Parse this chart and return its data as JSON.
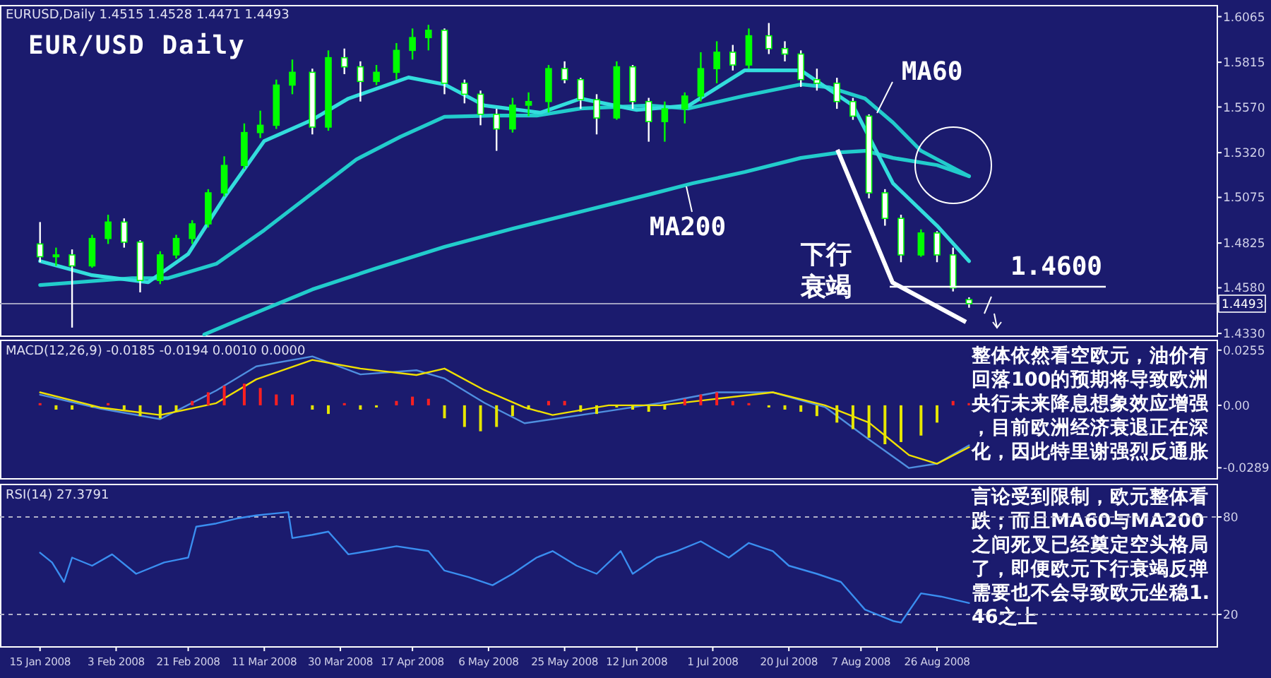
{
  "chart_data": [
    {
      "type": "candlestick",
      "title": "EUR/USD Daily",
      "subtitle": "EURUSD,Daily  1.4515 1.4528 1.4471 1.4493",
      "tick_labels": "y",
      "xlim": [
        "2008-01-05",
        "2008-11-04"
      ],
      "ylim": [
        1.4315,
        1.6125
      ],
      "yticks": [
        1.6065,
        1.5815,
        {
          "value": 1.557,
          "label": "1.5570"
        },
        {
          "value": 1.532,
          "label": "1.5320"
        },
        1.5075,
        1.4825,
        {
          "value": 1.458,
          "label": "1.4580"
        },
        {
          "value": 1.433,
          "label": "1.4330"
        }
      ],
      "x": [
        "2008-01-15",
        "2008-01-19",
        "2008-01-23",
        "2008-01-28",
        "2008-02-01",
        "2008-02-05",
        "2008-02-09",
        "2008-02-14",
        "2008-02-18",
        "2008-02-22",
        "2008-02-26",
        "2008-03-01",
        "2008-03-06",
        "2008-03-10",
        "2008-03-14",
        "2008-03-18",
        "2008-03-23",
        "2008-03-27",
        "2008-03-31",
        "2008-04-04",
        "2008-04-08",
        "2008-04-13",
        "2008-04-17",
        "2008-04-21",
        "2008-04-25",
        "2008-04-30",
        "2008-05-04",
        "2008-05-08",
        "2008-05-12",
        "2008-05-16",
        "2008-05-21",
        "2008-05-25",
        "2008-05-29",
        "2008-06-02",
        "2008-06-07",
        "2008-06-11",
        "2008-06-15",
        "2008-06-19",
        "2008-06-24",
        "2008-06-28",
        "2008-07-02",
        "2008-07-06",
        "2008-07-10",
        "2008-07-15",
        "2008-07-19",
        "2008-07-23",
        "2008-07-27",
        "2008-08-01",
        "2008-08-05",
        "2008-08-09",
        "2008-08-13",
        "2008-08-17",
        "2008-08-22",
        "2008-08-26",
        "2008-08-30",
        "2008-09-03"
      ],
      "ohlc": [
        [
          1.482,
          1.494,
          1.472,
          1.475
        ],
        [
          1.475,
          1.48,
          1.47,
          1.476
        ],
        [
          1.476,
          1.479,
          1.4362,
          1.47
        ],
        [
          1.47,
          1.487,
          1.469,
          1.485
        ],
        [
          1.485,
          1.498,
          1.482,
          1.494
        ],
        [
          1.494,
          1.496,
          1.48,
          1.483
        ],
        [
          1.483,
          1.484,
          1.4555,
          1.462
        ],
        [
          1.462,
          1.478,
          1.46,
          1.476
        ],
        [
          1.476,
          1.487,
          1.474,
          1.485
        ],
        [
          1.485,
          1.495,
          1.482,
          1.493
        ],
        [
          1.493,
          1.512,
          1.491,
          1.51
        ],
        [
          1.51,
          1.53,
          1.508,
          1.525
        ],
        [
          1.525,
          1.548,
          1.523,
          1.543
        ],
        [
          1.543,
          1.555,
          1.54,
          1.547
        ],
        [
          1.547,
          1.572,
          1.545,
          1.569
        ],
        [
          1.569,
          1.583,
          1.564,
          1.576
        ],
        [
          1.576,
          1.578,
          1.542,
          1.546
        ],
        [
          1.546,
          1.588,
          1.544,
          1.584
        ],
        [
          1.584,
          1.589,
          1.575,
          1.579
        ],
        [
          1.579,
          1.582,
          1.56,
          1.571
        ],
        [
          1.571,
          1.58,
          1.569,
          1.576
        ],
        [
          1.576,
          1.592,
          1.572,
          1.588
        ],
        [
          1.588,
          1.6,
          1.583,
          1.595
        ],
        [
          1.595,
          1.602,
          1.588,
          1.599
        ],
        [
          1.599,
          1.6,
          1.564,
          1.57
        ],
        [
          1.57,
          1.572,
          1.559,
          1.564
        ],
        [
          1.564,
          1.566,
          1.547,
          1.553
        ],
        [
          1.553,
          1.556,
          1.533,
          1.545
        ],
        [
          1.545,
          1.562,
          1.543,
          1.558
        ],
        [
          1.558,
          1.565,
          1.552,
          1.56
        ],
        [
          1.56,
          1.58,
          1.554,
          1.578
        ],
        [
          1.578,
          1.582,
          1.57,
          1.572
        ],
        [
          1.572,
          1.573,
          1.556,
          1.561
        ],
        [
          1.561,
          1.564,
          1.542,
          1.551
        ],
        [
          1.551,
          1.582,
          1.55,
          1.579
        ],
        [
          1.579,
          1.58,
          1.556,
          1.56
        ],
        [
          1.56,
          1.562,
          1.538,
          1.549
        ],
        [
          1.549,
          1.56,
          1.538,
          1.556
        ],
        [
          1.556,
          1.565,
          1.548,
          1.563
        ],
        [
          1.563,
          1.587,
          1.56,
          1.578
        ],
        [
          1.578,
          1.593,
          1.57,
          1.587
        ],
        [
          1.587,
          1.591,
          1.577,
          1.58
        ],
        [
          1.58,
          1.6,
          1.578,
          1.596
        ],
        [
          1.596,
          1.603,
          1.586,
          1.589
        ],
        [
          1.589,
          1.593,
          1.582,
          1.586
        ],
        [
          1.586,
          1.588,
          1.568,
          1.572
        ],
        [
          1.572,
          1.578,
          1.566,
          1.57
        ],
        [
          1.57,
          1.573,
          1.556,
          1.56
        ],
        [
          1.56,
          1.562,
          1.55,
          1.552
        ],
        [
          1.552,
          1.553,
          1.507,
          1.51
        ],
        [
          1.51,
          1.512,
          1.492,
          1.496
        ],
        [
          1.496,
          1.498,
          1.472,
          1.476
        ],
        [
          1.476,
          1.49,
          1.475,
          1.488
        ],
        [
          1.488,
          1.489,
          1.472,
          1.476
        ],
        [
          1.476,
          1.48,
          1.456,
          1.458
        ],
        [
          1.4515,
          1.4528,
          1.4471,
          1.4493
        ]
      ],
      "colors": [
        "#ffffff",
        "#00ff00",
        "#ffffff",
        "#00ff00",
        "#00ff00",
        "#ffffff",
        "#ffffff",
        "#00ff00",
        "#00ff00",
        "#00ff00",
        "#00ff00",
        "#00ff00",
        "#00ff00",
        "#00ff00",
        "#00ff00",
        "#00ff00",
        "#ffffff",
        "#00ff00",
        "#ffffff",
        "#ffffff",
        "#00ff00",
        "#00ff00",
        "#00ff00",
        "#00ff00",
        "#ffffff",
        "#ffffff",
        "#ffffff",
        "#ffffff",
        "#00ff00",
        "#00ff00",
        "#00ff00",
        "#ffffff",
        "#ffffff",
        "#ffffff",
        "#00ff00",
        "#ffffff",
        "#ffffff",
        "#00ff00",
        "#00ff00",
        "#00ff00",
        "#00ff00",
        "#ffffff",
        "#00ff00",
        "#ffffff",
        "#ffffff",
        "#ffffff",
        "#ffffff",
        "#ffffff",
        "#ffffff",
        "#ffffff",
        "#ffffff",
        "#ffffff",
        "#00ff00",
        "#ffffff",
        "#ffffff",
        "#ffffff"
      ],
      "series": [
        {
          "type": "line",
          "color": "#22cccc",
          "x": [
            "2008-02-25",
            "2008-03-06",
            "2008-03-23",
            "2008-04-08",
            "2008-04-25",
            "2008-05-12",
            "2008-05-29",
            "2008-06-15",
            "2008-06-26",
            "2008-07-09",
            "2008-07-23",
            "2008-08-02",
            "2008-08-08",
            "2008-08-15",
            "2008-08-26",
            "2008-09-03"
          ],
          "values": [
            1.4324,
            1.4417,
            1.4571,
            1.4687,
            1.4804,
            1.4904,
            1.4997,
            1.509,
            1.5152,
            1.5214,
            1.5291,
            1.5322,
            1.533,
            1.5291,
            1.5252,
            1.5191
          ]
        },
        {
          "type": "line",
          "color": "#22cccc",
          "x": [
            "2008-01-15",
            "2008-02-07",
            "2008-02-16",
            "2008-02-28",
            "2008-03-11",
            "2008-03-23",
            "2008-04-03",
            "2008-04-14",
            "2008-04-25",
            "2008-05-07",
            "2008-05-18",
            "2008-05-29",
            "2008-06-15",
            "2008-06-25",
            "2008-07-09",
            "2008-07-23",
            "2008-07-30",
            "2008-08-08",
            "2008-08-15",
            "2008-08-22",
            "2008-09-03"
          ],
          "values": [
            1.4595,
            1.4633,
            1.4633,
            1.4711,
            1.4896,
            1.5098,
            1.5283,
            1.5407,
            1.5516,
            1.5523,
            1.5523,
            1.5562,
            1.5578,
            1.5562,
            1.5632,
            1.5694,
            1.5678,
            1.5616,
            1.5485,
            1.533,
            1.5191
          ]
        },
        {
          "type": "line",
          "color": "#33dddd",
          "x": [
            "2008-01-15",
            "2008-01-28",
            "2008-02-11",
            "2008-02-21",
            "2008-03-01",
            "2008-03-11",
            "2008-03-23",
            "2008-04-01",
            "2008-04-16",
            "2008-04-25",
            "2008-05-05",
            "2008-05-19",
            "2008-05-29",
            "2008-06-12",
            "2008-06-25",
            "2008-07-09",
            "2008-07-23",
            "2008-08-05",
            "2008-08-15",
            "2008-08-26",
            "2008-09-03"
          ],
          "values": [
            1.4726,
            1.4649,
            1.461,
            1.4765,
            1.5074,
            1.5384,
            1.55,
            1.5616,
            1.5732,
            1.5694,
            1.5578,
            1.5539,
            1.5616,
            1.5554,
            1.5578,
            1.5771,
            1.5771,
            1.5578,
            1.5152,
            1.492,
            1.4726
          ]
        }
      ],
      "ref_lines": [
        {
          "axis": "y",
          "value": 1.4493,
          "label": "1.4493",
          "color": "#a0a0c0"
        }
      ],
      "annotations": [
        "MA60",
        "MA200",
        "下行衰竭",
        "1.4600"
      ]
    },
    {
      "type": "bar",
      "title": "MACD(12,26,9) -0.0185 -0.0194 0.0010 0.0000",
      "tick_labels": "y",
      "xlim": [
        "2008-01-05",
        "2008-11-04"
      ],
      "ylim": [
        -0.034,
        0.03
      ],
      "yticks": [
        0.0255,
        {
          "value": 0,
          "label": "0.00"
        },
        -0.0289
      ],
      "series": [
        {
          "type": "bar",
          "x": [
            "2008-01-15",
            "2008-01-19",
            "2008-01-23",
            "2008-01-28",
            "2008-02-01",
            "2008-02-05",
            "2008-02-09",
            "2008-02-14",
            "2008-02-18",
            "2008-02-22",
            "2008-02-26",
            "2008-03-01",
            "2008-03-06",
            "2008-03-10",
            "2008-03-14",
            "2008-03-18",
            "2008-03-23",
            "2008-03-27",
            "2008-03-31",
            "2008-04-04",
            "2008-04-08",
            "2008-04-13",
            "2008-04-17",
            "2008-04-21",
            "2008-04-25",
            "2008-04-30",
            "2008-05-04",
            "2008-05-08",
            "2008-05-12",
            "2008-05-16",
            "2008-05-21",
            "2008-05-25",
            "2008-05-29",
            "2008-06-02",
            "2008-06-07",
            "2008-06-11",
            "2008-06-15",
            "2008-06-19",
            "2008-06-24",
            "2008-06-28",
            "2008-07-02",
            "2008-07-06",
            "2008-07-10",
            "2008-07-15",
            "2008-07-19",
            "2008-07-23",
            "2008-07-27",
            "2008-08-01",
            "2008-08-05",
            "2008-08-09",
            "2008-08-13",
            "2008-08-17",
            "2008-08-22",
            "2008-08-26",
            "2008-08-30",
            "2008-09-03"
          ],
          "values": [
            0.001,
            -0.002,
            -0.002,
            -0.001,
            0.001,
            -0.002,
            -0.005,
            -0.006,
            -0.003,
            0.002,
            0.006,
            0.009,
            0.01,
            0.008,
            0.005,
            0.005,
            -0.002,
            -0.004,
            0.001,
            -0.002,
            -0.001,
            0.002,
            0.004,
            0.003,
            -0.006,
            -0.01,
            -0.012,
            -0.01,
            -0.005,
            -0.002,
            0.002,
            0.002,
            -0.003,
            -0.004,
            -0.001,
            -0.002,
            -0.003,
            -0.002,
            0.003,
            0.005,
            0.006,
            0.002,
            0.001,
            -0.001,
            -0.002,
            -0.003,
            -0.005,
            -0.008,
            -0.011,
            -0.015,
            -0.018,
            -0.017,
            -0.014,
            -0.008,
            0.002,
            0.001
          ],
          "colors": [
            "#ff2020",
            "#e6e600",
            "#e6e600",
            "#e6e600",
            "#ff2020",
            "#e6e600",
            "#e6e600",
            "#e6e600",
            "#e6e600",
            "#ff2020",
            "#ff2020",
            "#ff2020",
            "#ff2020",
            "#ff2020",
            "#ff2020",
            "#ff2020",
            "#e6e600",
            "#e6e600",
            "#ff2020",
            "#e6e600",
            "#e6e600",
            "#ff2020",
            "#ff2020",
            "#ff2020",
            "#e6e600",
            "#e6e600",
            "#e6e600",
            "#e6e600",
            "#e6e600",
            "#e6e600",
            "#ff2020",
            "#ff2020",
            "#e6e600",
            "#e6e600",
            "#e6e600",
            "#e6e600",
            "#e6e600",
            "#e6e600",
            "#ff2020",
            "#ff2020",
            "#ff2020",
            "#ff2020",
            "#ff2020",
            "#e6e600",
            "#e6e600",
            "#e6e600",
            "#e6e600",
            "#e6e600",
            "#e6e600",
            "#e6e600",
            "#e6e600",
            "#e6e600",
            "#e6e600",
            "#e6e600",
            "#ff2020",
            "#ff2020"
          ]
        },
        {
          "type": "line",
          "color": "#4f8fe0",
          "x": [
            "2008-01-15",
            "2008-01-30",
            "2008-02-14",
            "2008-02-28",
            "2008-03-09",
            "2008-03-23",
            "2008-04-04",
            "2008-04-18",
            "2008-04-25",
            "2008-05-05",
            "2008-05-15",
            "2008-05-22",
            "2008-06-05",
            "2008-06-18",
            "2008-07-02",
            "2008-07-16",
            "2008-07-29",
            "2008-08-09",
            "2008-08-19",
            "2008-08-26",
            "2008-09-03"
          ],
          "values": [
            0.0049,
            -0.0015,
            -0.0064,
            0.0068,
            0.018,
            0.0226,
            0.0143,
            0.0162,
            0.0124,
            0.0011,
            -0.0083,
            -0.0064,
            -0.0026,
            0.0011,
            0.006,
            0.006,
            -0.0008,
            -0.0158,
            -0.029,
            -0.027,
            -0.0185
          ]
        },
        {
          "type": "line",
          "color": "#f0e000",
          "x": [
            "2008-01-15",
            "2008-01-30",
            "2008-02-14",
            "2008-02-28",
            "2008-03-09",
            "2008-03-23",
            "2008-04-04",
            "2008-04-18",
            "2008-04-25",
            "2008-05-05",
            "2008-05-15",
            "2008-05-22",
            "2008-06-05",
            "2008-06-18",
            "2008-07-02",
            "2008-07-16",
            "2008-07-29",
            "2008-08-09",
            "2008-08-19",
            "2008-08-26",
            "2008-09-03"
          ],
          "values": [
            0.006,
            -0.001,
            -0.0045,
            0.001,
            0.012,
            0.021,
            0.017,
            0.014,
            0.017,
            0.007,
            -0.001,
            -0.0045,
            0,
            0,
            0.003,
            0.006,
            0,
            -0.008,
            -0.023,
            -0.027,
            -0.0194
          ]
        }
      ],
      "annotations": [
        "整体依然看空欧元，油价有回落100的预期将导致欧洲央行未来降息想象效应增强，目前欧洲经济衰退正在深化，因此特里谢强烈反通胀言论受到限制，欧元整体看跌；而且MA60与MA200之间死叉已经奠定空头格局了，即便欧元下行衰竭反弹需要也不会导致欧元坐稳1.46之上"
      ]
    },
    {
      "type": "line",
      "title": "RSI(14) 27.3791",
      "color": "#3a8ef0",
      "xlim": [
        "2008-01-05",
        "2008-11-04"
      ],
      "ylim": [
        0,
        100
      ],
      "yticks": [
        80,
        20
      ],
      "xticks": [
        {
          "value": "2008-01-15",
          "label": "15 Jan 2008"
        },
        {
          "value": "2008-02-03",
          "label": "3 Feb 2008"
        },
        {
          "value": "2008-02-21",
          "label": "21 Feb 2008"
        },
        {
          "value": "2008-03-11",
          "label": "11 Mar 2008"
        },
        {
          "value": "2008-03-30",
          "label": "30 Mar 2008"
        },
        {
          "value": "2008-04-17",
          "label": "17 Apr 2008"
        },
        {
          "value": "2008-05-06",
          "label": "6 May 2008"
        },
        {
          "value": "2008-05-25",
          "label": "25 May 2008"
        },
        {
          "value": "2008-06-12",
          "label": "12 Jun 2008"
        },
        {
          "value": "2008-07-01",
          "label": "1 Jul 2008"
        },
        {
          "value": "2008-07-20",
          "label": "20 Jul 2008"
        },
        {
          "value": "2008-08-07",
          "label": "7 Aug 2008"
        },
        {
          "value": "2008-08-26",
          "label": "26 Aug 2008"
        }
      ],
      "x": [
        "2008-01-15",
        "2008-01-18",
        "2008-01-21",
        "2008-01-23",
        "2008-01-28",
        "2008-02-02",
        "2008-02-08",
        "2008-02-15",
        "2008-02-21",
        "2008-02-23",
        "2008-02-28",
        "2008-03-04",
        "2008-03-09",
        "2008-03-13",
        "2008-03-17",
        "2008-03-18",
        "2008-03-23",
        "2008-03-27",
        "2008-04-01",
        "2008-04-06",
        "2008-04-13",
        "2008-04-21",
        "2008-04-25",
        "2008-05-01",
        "2008-05-07",
        "2008-05-12",
        "2008-05-18",
        "2008-05-22",
        "2008-05-28",
        "2008-06-02",
        "2008-06-08",
        "2008-06-11",
        "2008-06-17",
        "2008-06-22",
        "2008-06-28",
        "2008-07-05",
        "2008-07-10",
        "2008-07-16",
        "2008-07-20",
        "2008-07-27",
        "2008-08-02",
        "2008-08-08",
        "2008-08-15",
        "2008-08-17",
        "2008-08-22",
        "2008-08-27",
        "2008-09-03"
      ],
      "values": [
        58,
        52,
        40,
        55,
        50,
        57,
        45,
        52,
        55,
        74,
        76,
        79,
        81,
        82,
        83,
        67,
        69,
        71,
        57,
        59,
        62,
        59,
        47,
        43,
        38,
        45,
        55,
        59,
        50,
        45,
        59,
        45,
        55,
        59,
        65,
        55,
        64,
        59,
        50,
        45,
        40,
        23,
        16,
        15,
        33,
        31,
        27
      ],
      "ref_lines": [
        {
          "axis": "y",
          "value": 80,
          "line_style": "dashed",
          "color": "#b0b0c8"
        },
        {
          "axis": "y",
          "value": 20,
          "line_style": "dashed",
          "color": "#b0b0c8"
        }
      ]
    }
  ]
}
